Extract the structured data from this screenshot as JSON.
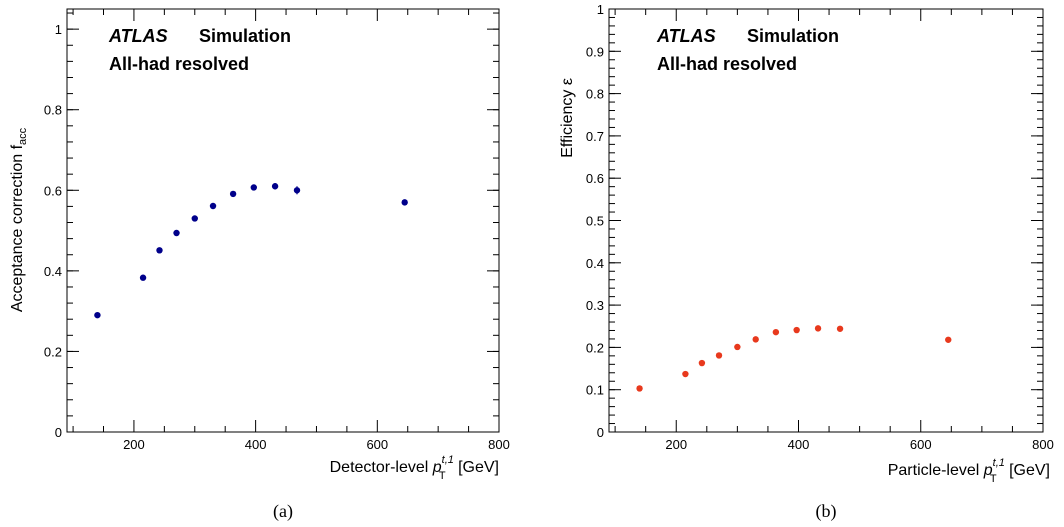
{
  "chart_data": [
    {
      "type": "scatter",
      "panel_label": "(a)",
      "ylabel_main": "Acceptance correction f",
      "ylabel_sub": "acc",
      "xlabel_prefix": "Detector-level ",
      "xlabel_var": "p",
      "xlabel_sub": "T",
      "xlabel_sup": "t,1",
      "xlabel_unit": " [GeV]",
      "experiment": "ATLAS",
      "tag": "Simulation",
      "channel": "All-had resolved",
      "xlim": [
        90,
        800
      ],
      "ylim": [
        0,
        1.05
      ],
      "x_ticks": [
        200,
        400,
        600,
        800
      ],
      "x_tick_labels": [
        "200",
        "400",
        "600",
        "800"
      ],
      "y_ticks": [
        0,
        0.2,
        0.4,
        0.6,
        0.8,
        1
      ],
      "y_tick_labels": [
        "0",
        "0.2",
        "0.4",
        "0.6",
        "0.8",
        "1"
      ],
      "color": "#00008B",
      "series": [
        {
          "x": [
            140,
            215,
            242,
            270,
            300,
            330,
            363,
            397,
            432,
            468,
            645
          ],
          "y": [
            0.29,
            0.383,
            0.451,
            0.494,
            0.53,
            0.561,
            0.591,
            0.607,
            0.61,
            0.6,
            0.57
          ],
          "yerr": [
            0.003,
            0.003,
            0.003,
            0.003,
            0.003,
            0.004,
            0.004,
            0.005,
            0.008,
            0.01,
            0.005
          ]
        }
      ]
    },
    {
      "type": "scatter",
      "panel_label": "(b)",
      "ylabel_main": "Efficiency ε",
      "ylabel_sub": "",
      "xlabel_prefix": "Particle-level ",
      "xlabel_var": "p",
      "xlabel_sub": "T",
      "xlabel_sup": "t,1",
      "xlabel_unit": " [GeV]",
      "experiment": "ATLAS",
      "tag": "Simulation",
      "channel": "All-had resolved",
      "xlim": [
        90,
        800
      ],
      "ylim": [
        0,
        1
      ],
      "x_ticks": [
        200,
        400,
        600,
        800
      ],
      "x_tick_labels": [
        "200",
        "400",
        "600",
        "800"
      ],
      "y_ticks": [
        0,
        0.1,
        0.2,
        0.3,
        0.4,
        0.5,
        0.6,
        0.7,
        0.8,
        0.9,
        1
      ],
      "y_tick_labels": [
        "0",
        "0.1",
        "0.2",
        "0.3",
        "0.4",
        "0.5",
        "0.6",
        "0.7",
        "0.8",
        "0.9",
        "1"
      ],
      "color": "#E8391D",
      "series": [
        {
          "x": [
            140,
            215,
            242,
            270,
            300,
            330,
            363,
            397,
            432,
            468,
            645
          ],
          "y": [
            0.103,
            0.137,
            0.163,
            0.181,
            0.201,
            0.219,
            0.236,
            0.241,
            0.245,
            0.244,
            0.218
          ],
          "yerr": [
            0.001,
            0.001,
            0.001,
            0.001,
            0.001,
            0.001,
            0.001,
            0.001,
            0.001,
            0.002,
            0.001
          ]
        }
      ]
    }
  ]
}
